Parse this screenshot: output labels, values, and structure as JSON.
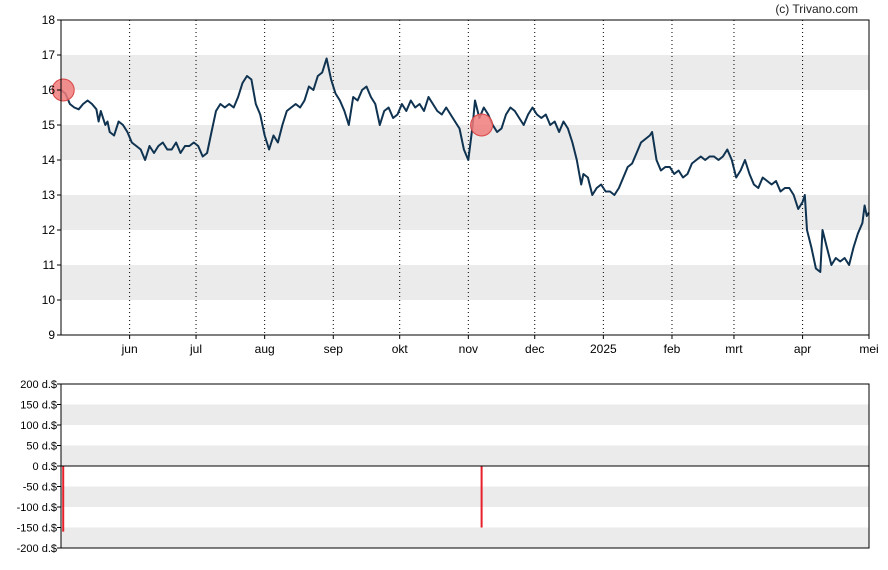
{
  "chart_data": [
    {
      "type": "line",
      "copyright": "(c) Trivano.com",
      "title": "",
      "xlabel": "",
      "ylabel": "",
      "ylim": [
        9,
        18
      ],
      "yticks": [
        "9",
        "10",
        "11",
        "12",
        "13",
        "14",
        "15",
        "16",
        "17",
        "18"
      ],
      "xtick_labels": [
        "jun",
        "jul",
        "aug",
        "sep",
        "okt",
        "nov",
        "dec",
        "2025",
        "feb",
        "mrt",
        "apr",
        "mei"
      ],
      "x_range_days": [
        0,
        365
      ],
      "xtick_days": [
        31,
        61,
        92,
        123,
        153,
        184,
        214,
        245,
        276,
        304,
        335,
        365
      ],
      "grid": "horizontal alternating bands, dotted vertical month lines",
      "colors": {
        "line": "#0f3350",
        "marker_fill": "#f07b7b",
        "marker_stroke": "#d94545",
        "band": "#ebebeb"
      },
      "series": [
        {
          "name": "",
          "points": [
            [
              0,
              16.0
            ],
            [
              2,
              15.9
            ],
            [
              4,
              15.6
            ],
            [
              6,
              15.5
            ],
            [
              8,
              15.45
            ],
            [
              10,
              15.6
            ],
            [
              12,
              15.7
            ],
            [
              14,
              15.6
            ],
            [
              16,
              15.45
            ],
            [
              17,
              15.1
            ],
            [
              18,
              15.4
            ],
            [
              20,
              15.0
            ],
            [
              21,
              15.1
            ],
            [
              22,
              14.8
            ],
            [
              24,
              14.7
            ],
            [
              26,
              15.1
            ],
            [
              28,
              15.0
            ],
            [
              30,
              14.8
            ],
            [
              32,
              14.5
            ],
            [
              34,
              14.4
            ],
            [
              36,
              14.3
            ],
            [
              38,
              14.0
            ],
            [
              40,
              14.4
            ],
            [
              42,
              14.2
            ],
            [
              44,
              14.4
            ],
            [
              46,
              14.5
            ],
            [
              48,
              14.3
            ],
            [
              50,
              14.3
            ],
            [
              52,
              14.5
            ],
            [
              54,
              14.2
            ],
            [
              56,
              14.4
            ],
            [
              58,
              14.4
            ],
            [
              60,
              14.5
            ],
            [
              62,
              14.4
            ],
            [
              64,
              14.1
            ],
            [
              66,
              14.2
            ],
            [
              68,
              14.8
            ],
            [
              70,
              15.4
            ],
            [
              72,
              15.6
            ],
            [
              74,
              15.5
            ],
            [
              76,
              15.6
            ],
            [
              78,
              15.5
            ],
            [
              80,
              15.8
            ],
            [
              82,
              16.2
            ],
            [
              84,
              16.4
            ],
            [
              86,
              16.3
            ],
            [
              88,
              15.6
            ],
            [
              90,
              15.3
            ],
            [
              92,
              14.7
            ],
            [
              94,
              14.3
            ],
            [
              96,
              14.7
            ],
            [
              98,
              14.5
            ],
            [
              100,
              15.0
            ],
            [
              102,
              15.4
            ],
            [
              104,
              15.5
            ],
            [
              106,
              15.6
            ],
            [
              108,
              15.5
            ],
            [
              110,
              15.7
            ],
            [
              112,
              16.1
            ],
            [
              114,
              16.0
            ],
            [
              116,
              16.4
            ],
            [
              118,
              16.5
            ],
            [
              120,
              16.9
            ],
            [
              122,
              16.3
            ],
            [
              124,
              15.9
            ],
            [
              126,
              15.7
            ],
            [
              128,
              15.4
            ],
            [
              130,
              15.0
            ],
            [
              132,
              15.8
            ],
            [
              134,
              15.7
            ],
            [
              136,
              16.0
            ],
            [
              138,
              16.1
            ],
            [
              140,
              15.8
            ],
            [
              142,
              15.6
            ],
            [
              144,
              15.0
            ],
            [
              146,
              15.4
            ],
            [
              148,
              15.5
            ],
            [
              150,
              15.2
            ],
            [
              152,
              15.3
            ],
            [
              154,
              15.6
            ],
            [
              156,
              15.4
            ],
            [
              158,
              15.7
            ],
            [
              160,
              15.5
            ],
            [
              162,
              15.6
            ],
            [
              164,
              15.4
            ],
            [
              166,
              15.8
            ],
            [
              168,
              15.6
            ],
            [
              170,
              15.4
            ],
            [
              172,
              15.3
            ],
            [
              174,
              15.5
            ],
            [
              176,
              15.3
            ],
            [
              178,
              15.1
            ],
            [
              180,
              14.9
            ],
            [
              182,
              14.3
            ],
            [
              184,
              14.0
            ],
            [
              186,
              15.0
            ],
            [
              187,
              15.7
            ],
            [
              189,
              15.2
            ],
            [
              191,
              15.5
            ],
            [
              193,
              15.3
            ],
            [
              195,
              15.0
            ],
            [
              197,
              14.8
            ],
            [
              199,
              14.9
            ],
            [
              201,
              15.3
            ],
            [
              203,
              15.5
            ],
            [
              205,
              15.4
            ],
            [
              207,
              15.2
            ],
            [
              209,
              15.0
            ],
            [
              211,
              15.3
            ],
            [
              213,
              15.5
            ],
            [
              215,
              15.3
            ],
            [
              217,
              15.2
            ],
            [
              219,
              15.3
            ],
            [
              221,
              15.0
            ],
            [
              223,
              15.1
            ],
            [
              225,
              14.8
            ],
            [
              227,
              15.1
            ],
            [
              229,
              14.9
            ],
            [
              231,
              14.5
            ],
            [
              233,
              14.0
            ],
            [
              235,
              13.3
            ],
            [
              236,
              13.6
            ],
            [
              238,
              13.5
            ],
            [
              240,
              13.0
            ],
            [
              242,
              13.2
            ],
            [
              244,
              13.3
            ],
            [
              246,
              13.1
            ],
            [
              248,
              13.1
            ],
            [
              250,
              13.0
            ],
            [
              252,
              13.2
            ],
            [
              254,
              13.5
            ],
            [
              256,
              13.8
            ],
            [
              258,
              13.9
            ],
            [
              260,
              14.2
            ],
            [
              262,
              14.5
            ],
            [
              264,
              14.6
            ],
            [
              266,
              14.7
            ],
            [
              267,
              14.8
            ],
            [
              269,
              14.0
            ],
            [
              271,
              13.7
            ],
            [
              273,
              13.8
            ],
            [
              275,
              13.8
            ],
            [
              277,
              13.6
            ],
            [
              279,
              13.7
            ],
            [
              281,
              13.5
            ],
            [
              283,
              13.6
            ],
            [
              285,
              13.9
            ],
            [
              287,
              14.0
            ],
            [
              289,
              14.1
            ],
            [
              291,
              14.0
            ],
            [
              293,
              14.1
            ],
            [
              295,
              14.1
            ],
            [
              297,
              14.0
            ],
            [
              299,
              14.1
            ],
            [
              301,
              14.3
            ],
            [
              303,
              14.0
            ],
            [
              305,
              13.5
            ],
            [
              307,
              13.7
            ],
            [
              309,
              14.0
            ],
            [
              311,
              13.6
            ],
            [
              313,
              13.3
            ],
            [
              315,
              13.2
            ],
            [
              317,
              13.5
            ],
            [
              319,
              13.4
            ],
            [
              321,
              13.3
            ],
            [
              323,
              13.4
            ],
            [
              325,
              13.1
            ],
            [
              327,
              13.2
            ],
            [
              329,
              13.2
            ],
            [
              331,
              13.0
            ],
            [
              333,
              12.6
            ],
            [
              335,
              12.8
            ],
            [
              336,
              13.0
            ],
            [
              337,
              12.0
            ],
            [
              339,
              11.5
            ],
            [
              341,
              10.9
            ],
            [
              343,
              10.8
            ],
            [
              344,
              12.0
            ],
            [
              346,
              11.5
            ],
            [
              348,
              11.0
            ],
            [
              350,
              11.2
            ],
            [
              352,
              11.1
            ],
            [
              354,
              11.2
            ],
            [
              356,
              11.0
            ],
            [
              358,
              11.5
            ],
            [
              360,
              11.9
            ],
            [
              362,
              12.2
            ],
            [
              363,
              12.7
            ],
            [
              364,
              12.4
            ],
            [
              365,
              12.5
            ]
          ]
        }
      ],
      "markers": [
        {
          "x": 1,
          "y": 16.0
        },
        {
          "x": 190,
          "y": 15.0
        }
      ]
    },
    {
      "type": "bar",
      "title": "",
      "xlabel": "",
      "ylabel": "",
      "ylim": [
        -200,
        200
      ],
      "yticks": [
        "200 d.$",
        "150 d.$",
        "100 d.$",
        "50 d.$",
        "0 d.$",
        "-50 d.$",
        "-100 d.$",
        "-150 d.$",
        "-200 d.$"
      ],
      "bar_color": "#e8202a",
      "bars": [
        {
          "x": 1,
          "value": -160
        },
        {
          "x": 190,
          "value": -150
        }
      ]
    }
  ]
}
